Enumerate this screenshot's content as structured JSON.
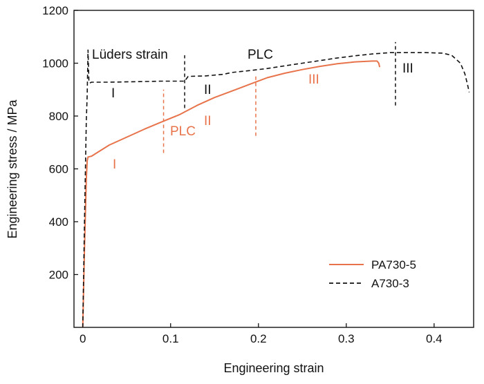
{
  "chart_data": {
    "type": "line",
    "xlabel": "Engineering strain",
    "ylabel": "Engineering stress / MPa",
    "xlim": [
      -0.01,
      0.445
    ],
    "ylim": [
      0,
      1200
    ],
    "xticks": [
      0,
      0.1,
      0.2,
      0.3,
      0.4
    ],
    "xtick_labels": [
      "0",
      "0.1",
      "0.2",
      "0.3",
      "0.4"
    ],
    "yticks": [
      200,
      400,
      600,
      800,
      1000,
      1200
    ],
    "ytick_labels": [
      "200",
      "400",
      "600",
      "800",
      "1000",
      "1200"
    ],
    "grid": false,
    "legend": "bottom-right",
    "series": [
      {
        "name": "PA730-5",
        "color": "#e8734a",
        "style": "solid",
        "x": [
          0.0,
          0.002,
          0.004,
          0.005,
          0.006,
          0.01,
          0.03,
          0.05,
          0.07,
          0.09,
          0.11,
          0.13,
          0.15,
          0.17,
          0.19,
          0.21,
          0.23,
          0.25,
          0.27,
          0.29,
          0.31,
          0.33,
          0.335,
          0.337,
          0.338
        ],
        "y": [
          0,
          300,
          560,
          630,
          645,
          648,
          690,
          720,
          750,
          778,
          805,
          840,
          870,
          895,
          920,
          945,
          962,
          976,
          988,
          998,
          1005,
          1008,
          1008,
          1000,
          985
        ]
      },
      {
        "name": "A730-3",
        "color": "#111111",
        "style": "dashed",
        "x": [
          0.0,
          0.002,
          0.004,
          0.005,
          0.006,
          0.007,
          0.008,
          0.01,
          0.03,
          0.06,
          0.09,
          0.116,
          0.12,
          0.14,
          0.16,
          0.17,
          0.19,
          0.21,
          0.23,
          0.25,
          0.27,
          0.29,
          0.31,
          0.33,
          0.35,
          0.37,
          0.39,
          0.41,
          0.42,
          0.43,
          0.435,
          0.438,
          0.44
        ],
        "y": [
          0,
          400,
          780,
          880,
          1050,
          930,
          925,
          928,
          928,
          930,
          932,
          932,
          950,
          952,
          958,
          965,
          972,
          980,
          990,
          1000,
          1010,
          1020,
          1028,
          1035,
          1040,
          1040,
          1040,
          1038,
          1030,
          1000,
          960,
          920,
          890
        ]
      }
    ],
    "annotations": {
      "luders": "Lüders strain",
      "plc_black": "PLC",
      "black_I": "I",
      "black_II": "II",
      "black_III": "III",
      "plc_orange": "PLC",
      "orange_I": "I",
      "orange_II": "II",
      "orange_III": "III"
    }
  }
}
